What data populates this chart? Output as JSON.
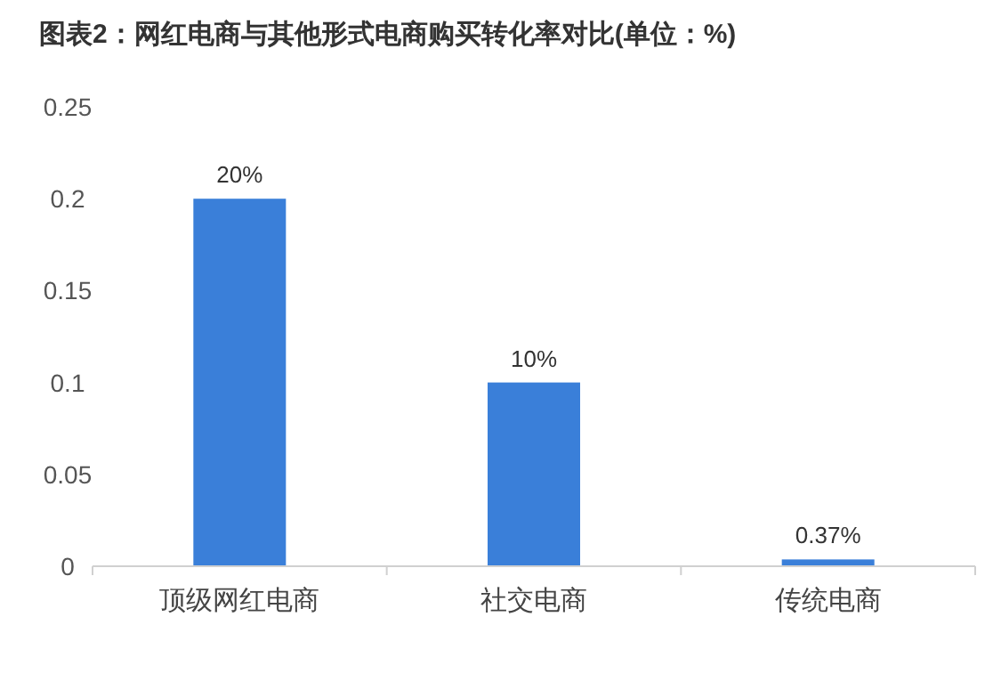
{
  "chart_data": {
    "type": "bar",
    "title": "图表2：网红电商与其他形式电商购买转化率对比(单位：%)",
    "categories": [
      "顶级网红电商",
      "社交电商",
      "传统电商"
    ],
    "values": [
      0.2,
      0.1,
      0.0037
    ],
    "value_labels": [
      "20%",
      "10%",
      "0.37%"
    ],
    "color": "#3a7fd9",
    "ylim": [
      0,
      0.25
    ],
    "yticks": [
      0,
      0.05,
      0.1,
      0.15,
      0.2,
      0.25
    ]
  }
}
